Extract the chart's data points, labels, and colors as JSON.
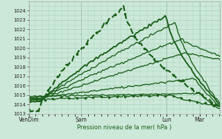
{
  "title": "",
  "xlabel": "Pression niveau de la mer( hPa )",
  "bg_color": "#cce8d8",
  "grid_color": "#99ccb0",
  "line_color": "#1a5e1a",
  "ylim": [
    1013,
    1025
  ],
  "yticks": [
    1013,
    1014,
    1015,
    1016,
    1017,
    1018,
    1019,
    1020,
    1021,
    1022,
    1023,
    1024
  ],
  "xtick_labels": [
    "VenDim",
    "Sam",
    "Lun",
    "Mar"
  ],
  "xtick_pos": [
    0.0,
    0.275,
    0.72,
    0.895
  ],
  "figsize": [
    3.2,
    2.0
  ],
  "dpi": 100
}
